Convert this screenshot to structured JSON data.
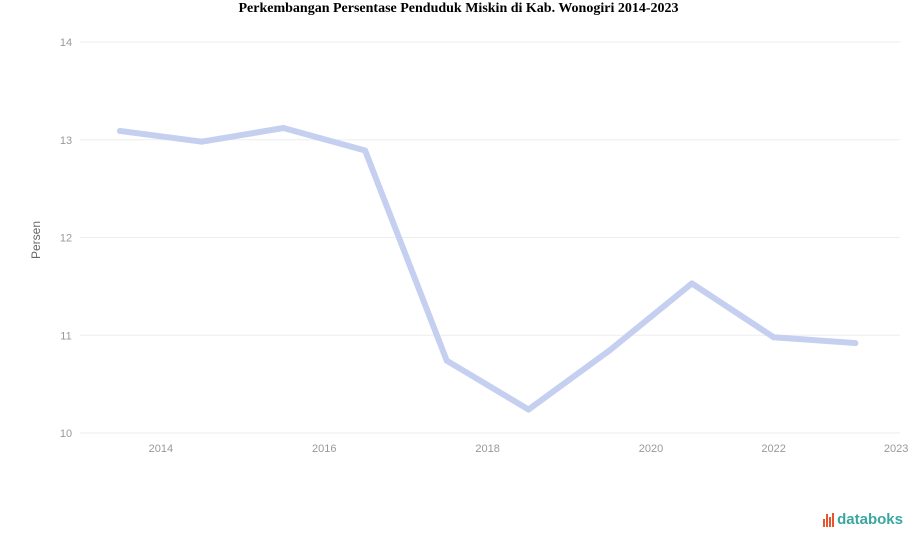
{
  "chart_data": {
    "type": "line",
    "title": "Perkembangan Persentase Penduduk Miskin di Kab. Wonogiri 2014-2023",
    "ylabel": "Persen",
    "xlabel": "",
    "x": [
      2014,
      2015,
      2016,
      2017,
      2018,
      2019,
      2020,
      2021,
      2022,
      2023
    ],
    "series": [
      {
        "values": [
          13.09,
          12.98,
          13.12,
          12.89,
          10.74,
          10.24,
          10.85,
          11.53,
          10.98,
          10.92
        ],
        "color": "#c5cff0"
      }
    ],
    "x_tick_labels": [
      "2014",
      "2016",
      "2018",
      "2020",
      "2022",
      "2023"
    ],
    "y_ticks": [
      10,
      11,
      12,
      13,
      14
    ],
    "ylim": [
      10,
      14
    ],
    "grid": true,
    "legend": "none"
  },
  "branding": {
    "logo_text": "databoks"
  }
}
